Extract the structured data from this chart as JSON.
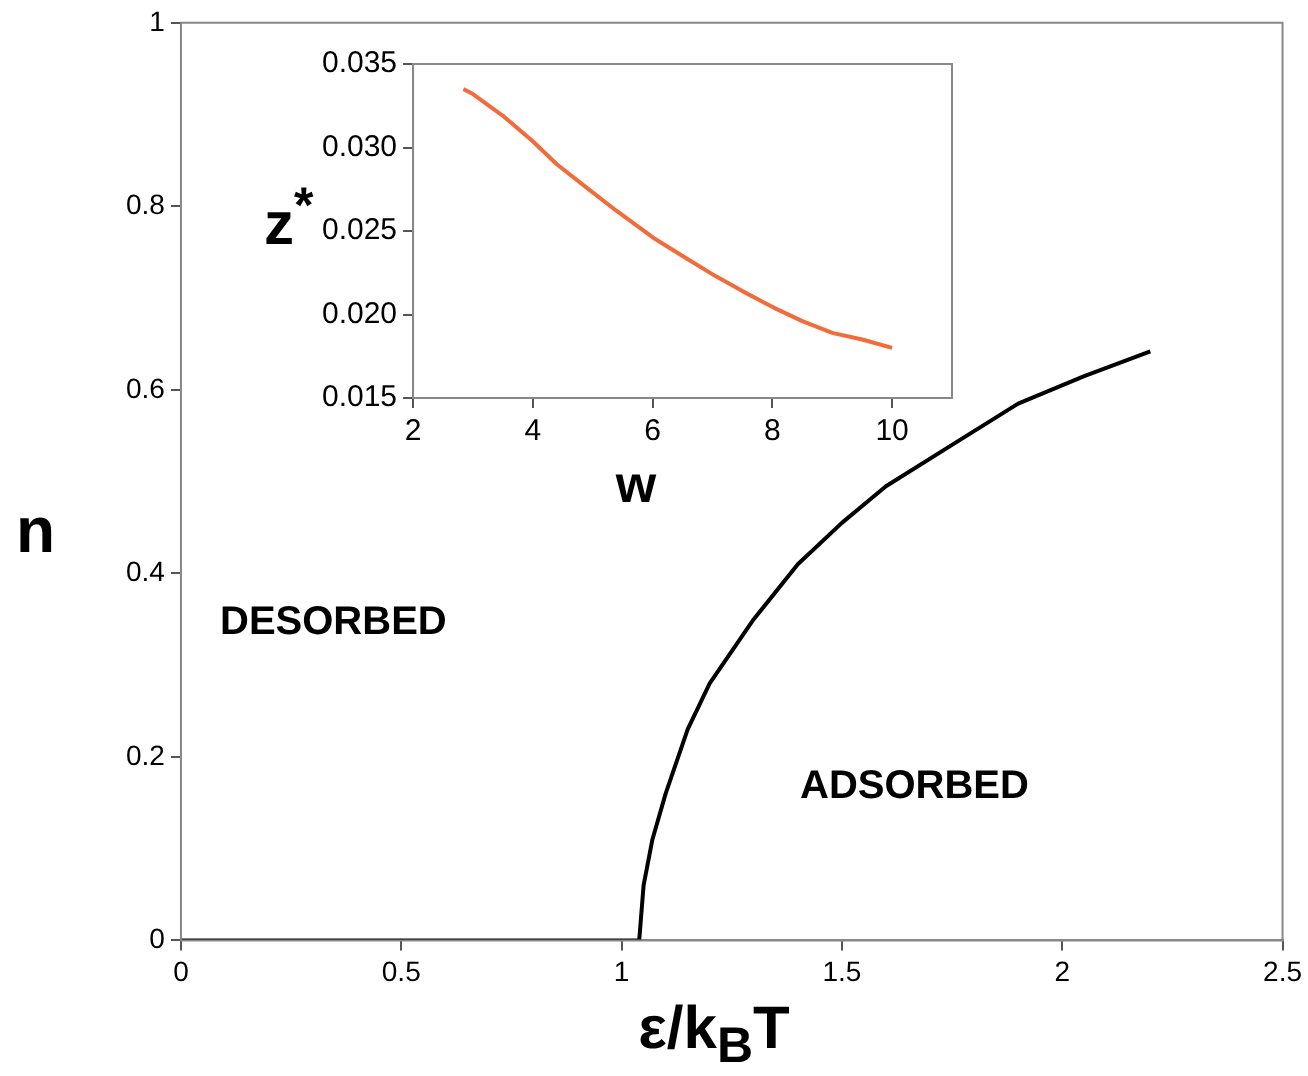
{
  "chart_data": [
    {
      "type": "line",
      "xlabel": "ε/k$_{B}$T",
      "ylabel": "n",
      "xlim": [
        0,
        2.5
      ],
      "ylim": [
        0,
        1
      ],
      "xticks": [
        0,
        0.5,
        1,
        1.5,
        2,
        2.5
      ],
      "yticks": [
        0,
        0.2,
        0.4,
        0.6,
        0.8,
        1
      ],
      "grid": false,
      "legend": false,
      "marker": "none",
      "annotations": [
        "DESORBED",
        "ADSORBED"
      ],
      "series": [
        {
          "color": "#000000",
          "x": [
            0,
            0.5,
            1,
            1.04,
            1.05,
            1.07,
            1.1,
            1.15,
            1.2,
            1.3,
            1.4,
            1.5,
            1.6,
            1.75,
            1.9,
            2.05,
            2.2
          ],
          "values": [
            0,
            0,
            0,
            0,
            0.06,
            0.11,
            0.16,
            0.23,
            0.28,
            0.35,
            0.41,
            0.455,
            0.495,
            0.54,
            0.585,
            0.615,
            0.642
          ]
        }
      ]
    },
    {
      "type": "line",
      "xlabel": "w",
      "ylabel": "z$^{*}$",
      "xlim": [
        2,
        11
      ],
      "ylim": [
        0.015,
        0.035
      ],
      "xticks": [
        2,
        4,
        6,
        8,
        10
      ],
      "yticks": [
        {
          "value": 0.015,
          "label": "0.015"
        },
        {
          "value": 0.02,
          "label": "0.020"
        },
        {
          "value": 0.025,
          "label": "0.025"
        },
        {
          "value": 0.03,
          "label": "0.030"
        },
        {
          "value": 0.035,
          "label": "0.035"
        }
      ],
      "grid": false,
      "legend": false,
      "marker": "none",
      "series": [
        {
          "color": "#f26b3a",
          "x": [
            2.84,
            3.0,
            3.5,
            3.99,
            4.4,
            4.86,
            5.4,
            6.01,
            6.5,
            7.05,
            7.5,
            8.03,
            8.5,
            9.0,
            9.5,
            10
          ],
          "values": [
            0.0335,
            0.0332,
            0.0319,
            0.0304,
            0.029,
            0.0277,
            0.0262,
            0.0246,
            0.0235,
            0.0223,
            0.0214,
            0.0204,
            0.0196,
            0.0189,
            0.0185,
            0.018
          ]
        }
      ]
    }
  ]
}
